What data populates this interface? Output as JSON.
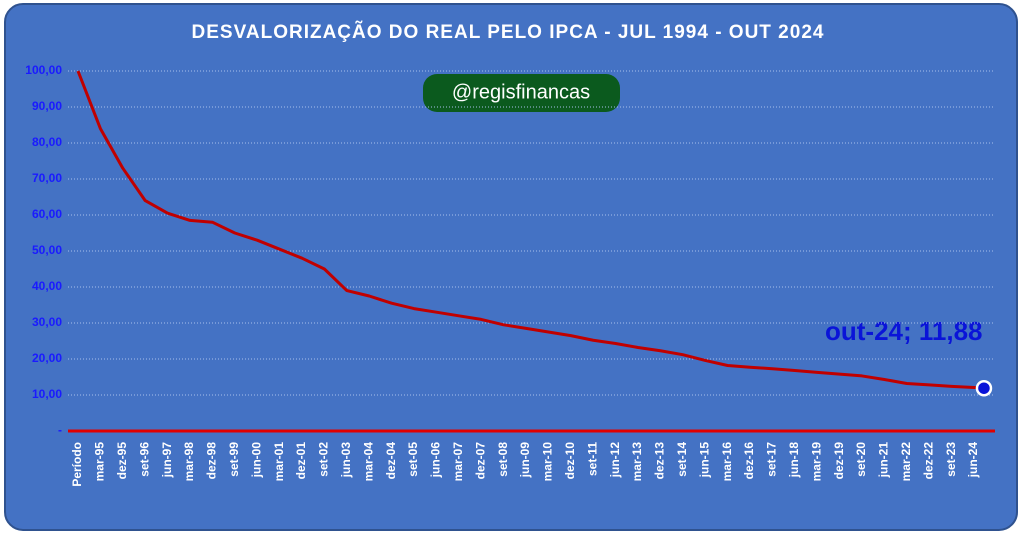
{
  "chart_data": {
    "type": "line",
    "title": "DESVALORIZAÇÃO DO REAL PELO IPCA - JUL 1994 - OUT 2024",
    "badge": "@regisfinancas",
    "annotation": "out-24; 11,88",
    "categories": [
      "Período",
      "mar-95",
      "dez-95",
      "set-96",
      "jun-97",
      "mar-98",
      "dez-98",
      "set-99",
      "jun-00",
      "mar-01",
      "dez-01",
      "set-02",
      "jun-03",
      "mar-04",
      "dez-04",
      "set-05",
      "jun-06",
      "mar-07",
      "dez-07",
      "set-08",
      "jun-09",
      "mar-10",
      "dez-10",
      "set-11",
      "jun-12",
      "mar-13",
      "dez-13",
      "set-14",
      "jun-15",
      "mar-16",
      "dez-16",
      "set-17",
      "jun-18",
      "mar-19",
      "dez-19",
      "set-20",
      "jun-21",
      "mar-22",
      "dez-22",
      "set-23",
      "jun-24",
      null
    ],
    "series": [
      {
        "name": "IPCA",
        "color": "#c00000",
        "values": [
          100,
          84,
          73,
          64,
          60.5,
          58.5,
          58,
          55,
          53,
          50.5,
          48,
          45,
          39,
          37.5,
          35.5,
          34,
          33,
          32,
          31,
          29.5,
          28.5,
          27.5,
          26.5,
          25.2,
          24.3,
          23.2,
          22.3,
          21.2,
          19.6,
          18.2,
          17.7,
          17.3,
          16.8,
          16.3,
          15.8,
          15.3,
          14.3,
          13.2,
          12.8,
          12.4,
          12.1,
          11.88
        ]
      }
    ],
    "ylim": [
      0,
      105
    ],
    "yticks": [
      {
        "value": 0,
        "label": "-"
      },
      {
        "value": 10,
        "label": "10,00"
      },
      {
        "value": 20,
        "label": "20,00"
      },
      {
        "value": 30,
        "label": "30,00"
      },
      {
        "value": 40,
        "label": "40,00"
      },
      {
        "value": 50,
        "label": "50,00"
      },
      {
        "value": 60,
        "label": "60,00"
      },
      {
        "value": 70,
        "label": "70,00"
      },
      {
        "value": 80,
        "label": "80,00"
      },
      {
        "value": 90,
        "label": "90,00"
      },
      {
        "value": 100,
        "label": "100,00"
      }
    ],
    "grid": true
  }
}
